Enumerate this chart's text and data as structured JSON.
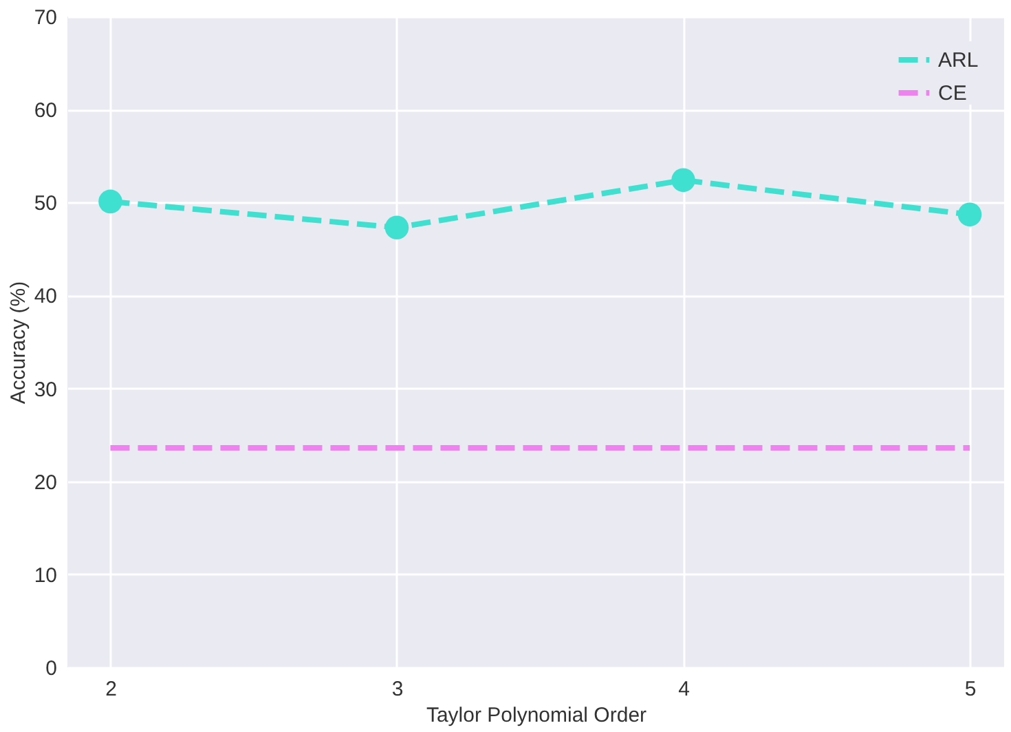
{
  "chart_data": {
    "type": "line",
    "xlabel": "Taylor Polynomial Order",
    "ylabel": "Accuracy (%)",
    "x": [
      2,
      3,
      4,
      5
    ],
    "series": [
      {
        "name": "ARL",
        "color": "#40e0d0",
        "values": [
          50.1,
          47.3,
          52.4,
          48.7
        ],
        "marker": "circle",
        "line_style": "dashed"
      },
      {
        "name": "CE",
        "color": "#ee82ee",
        "values": [
          23.6,
          23.6,
          23.6,
          23.6
        ],
        "marker": "none",
        "line_style": "dashed"
      }
    ],
    "xlim": [
      1.85,
      5.12
    ],
    "xticks": [
      2,
      3,
      4,
      5
    ],
    "ylim": [
      0,
      70
    ],
    "yticks": [
      0,
      10,
      20,
      30,
      40,
      50,
      60,
      70
    ],
    "grid": true,
    "legend": "top right"
  }
}
